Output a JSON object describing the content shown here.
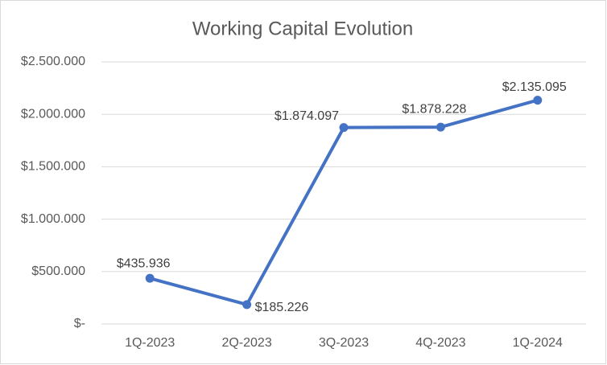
{
  "chart_data": {
    "type": "line",
    "title": "Working Capital Evolution",
    "categories": [
      "1Q-2023",
      "2Q-2023",
      "3Q-2023",
      "4Q-2023",
      "1Q-2024"
    ],
    "values": [
      435936,
      185226,
      1874097,
      1878228,
      2135095
    ],
    "value_labels": [
      "$435.936",
      "$185.226",
      "$1.874.097",
      "$1.878.228",
      "$2.135.095"
    ],
    "color": "#4472c4",
    "ylim": [
      0,
      2500000
    ],
    "yticks": [
      {
        "value": 0,
        "label": "$-"
      },
      {
        "value": 500000,
        "label": "$500.000"
      },
      {
        "value": 1000000,
        "label": "$1.000.000"
      },
      {
        "value": 1500000,
        "label": "$1.500.000"
      },
      {
        "value": 2000000,
        "label": "$2.000.000"
      },
      {
        "value": 2500000,
        "label": "$2.500.000"
      }
    ],
    "grid": true
  }
}
